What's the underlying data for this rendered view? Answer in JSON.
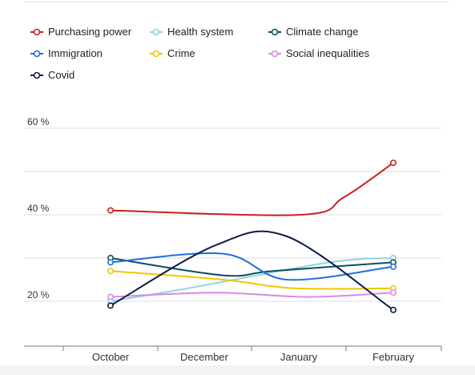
{
  "chart_data": {
    "type": "line",
    "title": "",
    "xlabel": "",
    "ylabel": "",
    "categories": [
      "October",
      "December",
      "January",
      "February"
    ],
    "y_tick_labels": [
      "60 %",
      "40 %",
      "20 %"
    ],
    "y_tick_values": [
      60,
      40,
      20
    ],
    "ylim": [
      10,
      60
    ],
    "grid": true,
    "legend_position": "top-left",
    "series": [
      {
        "name": "Purchasing power",
        "color": "#cc1f1f",
        "x": [
          0,
          2.7,
          3.3,
          4.0
        ],
        "values": [
          41,
          40,
          44,
          52
        ]
      },
      {
        "name": "Health system",
        "color": "#8fd3df",
        "x": [
          0,
          1.1,
          3.1,
          4.0
        ],
        "values": [
          20,
          23,
          29,
          30
        ]
      },
      {
        "name": "Climate change",
        "color": "#0b4f63",
        "x": [
          0,
          1.6,
          2.3,
          4.0
        ],
        "values": [
          30,
          26,
          27,
          29
        ]
      },
      {
        "name": "Immigration",
        "color": "#1f6fe0",
        "x": [
          0,
          1.6,
          2.5,
          4.0
        ],
        "values": [
          29,
          31,
          25,
          28
        ]
      },
      {
        "name": "Crime",
        "color": "#f2c500",
        "x": [
          0,
          1.6,
          2.6,
          4.0
        ],
        "values": [
          27,
          25,
          23,
          23
        ]
      },
      {
        "name": "Social inequalities",
        "color": "#d88ae8",
        "x": [
          0,
          1.5,
          2.8,
          4.0
        ],
        "values": [
          21,
          22,
          21,
          22
        ]
      },
      {
        "name": "Covid",
        "color": "#0d1b4a",
        "x": [
          0,
          1.5,
          2.5,
          4.0
        ],
        "values": [
          19,
          33,
          35,
          18
        ]
      }
    ]
  }
}
